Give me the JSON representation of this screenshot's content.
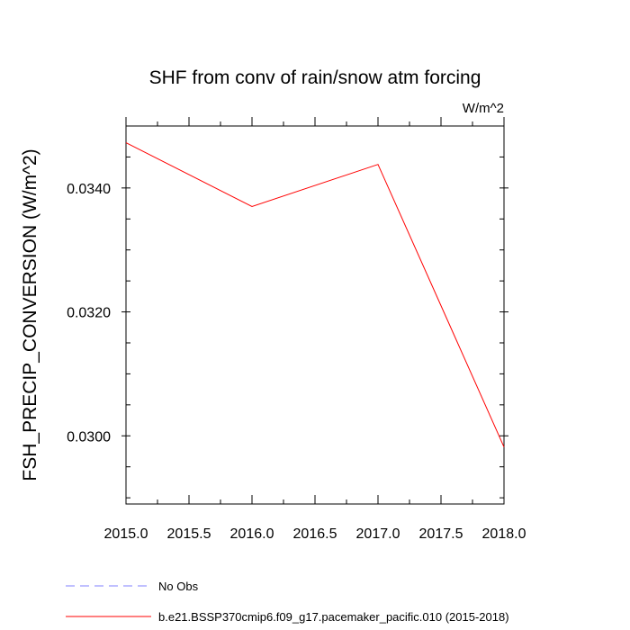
{
  "chart_data": {
    "type": "line",
    "title": "SHF from conv of rain/snow atm forcing",
    "units_label": "W/m^2",
    "ylabel": "FSH_PRECIP_CONVERSION  (W/m^2)",
    "xlabel": "",
    "xlim": [
      2015.0,
      2018.0
    ],
    "ylim": [
      0.0289,
      0.035
    ],
    "x_ticks": [
      2015.0,
      2015.5,
      2016.0,
      2016.5,
      2017.0,
      2017.5,
      2018.0
    ],
    "x_tick_labels": [
      "2015.0",
      "2015.5",
      "2016.0",
      "2016.5",
      "2017.0",
      "2017.5",
      "2018.0"
    ],
    "x_minor_ticks": [
      2015.25,
      2015.75,
      2016.25,
      2016.75,
      2017.25,
      2017.75
    ],
    "y_ticks": [
      0.03,
      0.032,
      0.034
    ],
    "y_tick_labels": [
      "0.0300",
      "0.0320",
      "0.0340"
    ],
    "y_minor_ticks": [
      0.029,
      0.0295,
      0.0305,
      0.031,
      0.0315,
      0.0325,
      0.033,
      0.0335,
      0.0345,
      0.035
    ],
    "grid": false,
    "series": [
      {
        "name": "b.e21.BSSP370cmip6.f09_g17.pacemaker_pacific.010 (2015-2018)",
        "color": "#ff0000",
        "dash": "solid",
        "x": [
          2015.0,
          2016.0,
          2017.0,
          2018.0
        ],
        "values": [
          0.03473,
          0.0337,
          0.03438,
          0.02982
        ]
      }
    ],
    "legend": {
      "placement": "bottom-left",
      "entries": [
        {
          "label": "No Obs",
          "color": "#8080ff",
          "dash": "dashed"
        },
        {
          "label": "b.e21.BSSP370cmip6.f09_g17.pacemaker_pacific.010 (2015-2018)",
          "color": "#ff0000",
          "dash": "solid"
        }
      ]
    }
  }
}
